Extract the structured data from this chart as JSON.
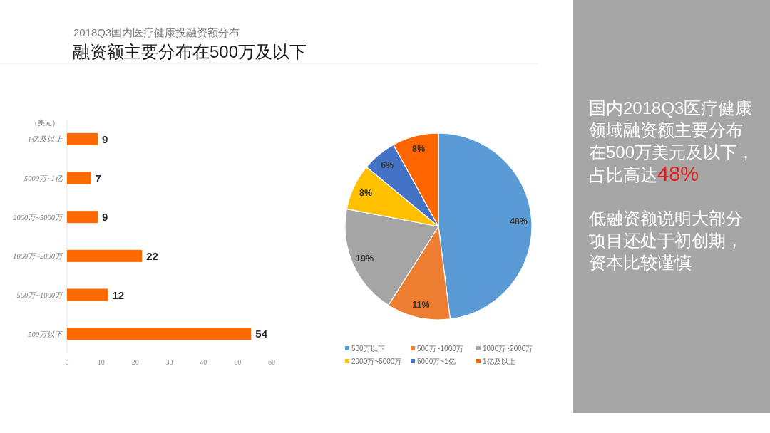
{
  "chart_data": [
    {
      "type": "bar",
      "title": "2018Q3国内医疗健康投融资额分布",
      "subtitle": "融资额主要分布在500万及以下",
      "ylabel": "（美元）",
      "orientation": "horizontal",
      "categories": [
        "1亿及以上",
        "5000万~1亿",
        "2000万~5000万",
        "1000万~2000万",
        "500万~1000万",
        "500万以下"
      ],
      "values": [
        9,
        7,
        9,
        22,
        12,
        54
      ],
      "color": "#fe6a00",
      "xlim": [
        0,
        60
      ],
      "xticks": [
        0,
        10,
        20,
        30,
        40,
        50,
        60
      ],
      "data_labels": true
    },
    {
      "type": "pie",
      "categories": [
        "500万以下",
        "500万~1000万",
        "1000万~2000万",
        "2000万~5000万",
        "5000万~1亿",
        "1亿及以上"
      ],
      "values": [
        48,
        11,
        19,
        8,
        6,
        8
      ],
      "colors": [
        "#5b9bd5",
        "#ed7d31",
        "#a5a5a5",
        "#ffc000",
        "#4472c4",
        "#ff6600"
      ],
      "value_labels": [
        "48%",
        "11%",
        "19%",
        "8%",
        "6%",
        "8%"
      ],
      "legend": "bottom"
    },
    {
      "type": "other",
      "annotations": [
        "国内2018Q3医疗健康领域融资额主要分布在500万美元及以下，",
        "占比高达",
        "48%",
        "低融资额说明大部分项目还处于初创期，资本比较谨慎"
      ],
      "colors": [
        "#ffffff",
        "#ffffff",
        "#e0201e",
        "#ffffff"
      ]
    }
  ]
}
